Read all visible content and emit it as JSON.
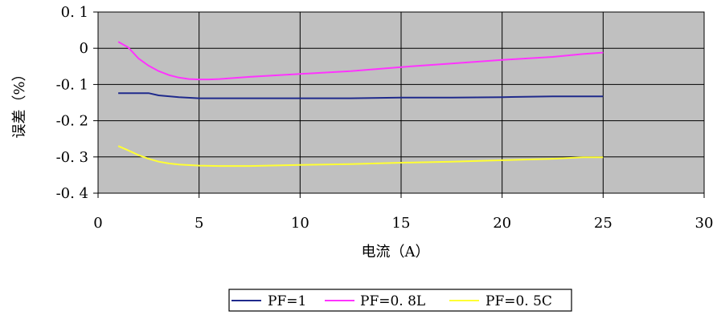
{
  "chart_data": {
    "type": "line",
    "title": "",
    "xlabel": "电流（A）",
    "ylabel": "误差（%）",
    "xlim": [
      0,
      30
    ],
    "ylim": [
      -0.4,
      0.1
    ],
    "x_ticks": [
      0,
      5,
      10,
      15,
      20,
      25,
      30
    ],
    "x_tick_labels": [
      "0",
      "5",
      "10",
      "15",
      "20",
      "25",
      "30"
    ],
    "y_ticks": [
      0.1,
      0,
      -0.1,
      -0.2,
      -0.3,
      -0.4
    ],
    "y_tick_labels": [
      "0. 1",
      "0",
      "-0. 1",
      "-0. 2",
      "-0. 3",
      "-0. 4"
    ],
    "grid": true,
    "plot_background": "#c0c0c0",
    "legend_position": "bottom-center",
    "series": [
      {
        "name": "PF=1",
        "legend_label": "PF=1",
        "color": "#1f2a8c",
        "x": [
          1,
          1.5,
          2,
          2.5,
          3,
          4,
          5,
          7.5,
          10,
          12.5,
          15,
          17.5,
          20,
          22.5,
          25
        ],
        "y": [
          -0.124,
          -0.124,
          -0.124,
          -0.124,
          -0.13,
          -0.135,
          -0.138,
          -0.138,
          -0.138,
          -0.138,
          -0.136,
          -0.136,
          -0.135,
          -0.133,
          -0.133
        ]
      },
      {
        "name": "PF=0.8L",
        "legend_label": "PF=0. 8L",
        "color": "#ff33ff",
        "x": [
          1,
          1.5,
          2,
          2.5,
          3,
          3.5,
          4,
          4.5,
          5,
          5.5,
          6,
          7.5,
          10,
          12.5,
          15,
          17.5,
          20,
          22.5,
          24,
          25
        ],
        "y": [
          0.018,
          0.002,
          -0.028,
          -0.048,
          -0.063,
          -0.074,
          -0.081,
          -0.085,
          -0.086,
          -0.086,
          -0.085,
          -0.079,
          -0.071,
          -0.063,
          -0.052,
          -0.042,
          -0.032,
          -0.024,
          -0.016,
          -0.012
        ]
      },
      {
        "name": "PF=0.5C",
        "legend_label": "PF=0. 5C",
        "color": "#ffff33",
        "x": [
          1,
          1.5,
          2,
          2.5,
          3,
          3.5,
          4,
          5,
          6,
          7.5,
          10,
          12.5,
          15,
          17.5,
          20,
          22.5,
          24,
          25
        ],
        "y": [
          -0.27,
          -0.282,
          -0.295,
          -0.305,
          -0.313,
          -0.318,
          -0.321,
          -0.324,
          -0.325,
          -0.325,
          -0.322,
          -0.32,
          -0.316,
          -0.313,
          -0.309,
          -0.305,
          -0.301,
          -0.301
        ]
      }
    ]
  }
}
